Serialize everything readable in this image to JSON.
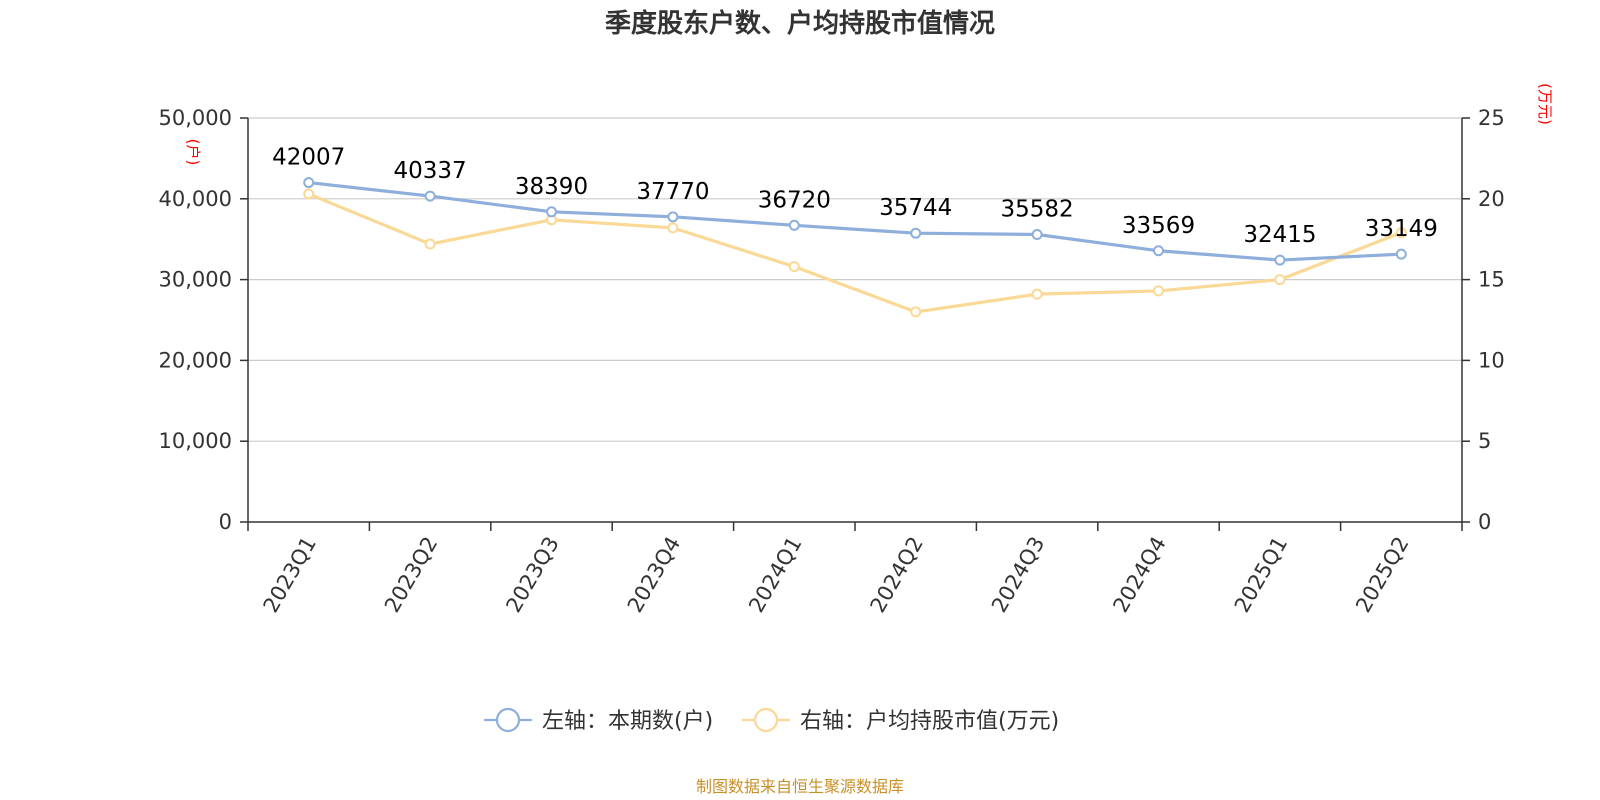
{
  "chart_data": {
    "type": "line",
    "title": "季度股东户数、户均持股市值情况",
    "categories": [
      "2023Q1",
      "2023Q2",
      "2023Q3",
      "2023Q4",
      "2024Q1",
      "2024Q2",
      "2024Q3",
      "2024Q4",
      "2025Q1",
      "2025Q2"
    ],
    "left_axis": {
      "unit": "(户)",
      "min": 0,
      "max": 50000,
      "ticks": [
        "0",
        "10,000",
        "20,000",
        "30,000",
        "40,000",
        "50,000"
      ]
    },
    "right_axis": {
      "unit": "(万元)",
      "min": 0,
      "max": 25,
      "ticks": [
        "0",
        "5",
        "10",
        "15",
        "20",
        "25"
      ]
    },
    "series": [
      {
        "name": "左轴：本期数(户)",
        "axis": "left",
        "color": "#8eaedb",
        "values": [
          42007,
          40337,
          38390,
          37770,
          36720,
          35744,
          35582,
          33569,
          32415,
          33149
        ],
        "labels": [
          "42007",
          "40337",
          "38390",
          "37770",
          "36720",
          "35744",
          "35582",
          "33569",
          "32415",
          "33149"
        ]
      },
      {
        "name": "右轴：户均持股市值(万元)",
        "axis": "right",
        "color": "#fad896",
        "values": [
          20.3,
          17.2,
          18.7,
          18.2,
          15.8,
          13.0,
          14.1,
          14.3,
          15.0,
          17.9
        ]
      }
    ],
    "grid": true,
    "legend_position": "bottom-center"
  },
  "source": "制图数据来自恒生聚源数据库"
}
